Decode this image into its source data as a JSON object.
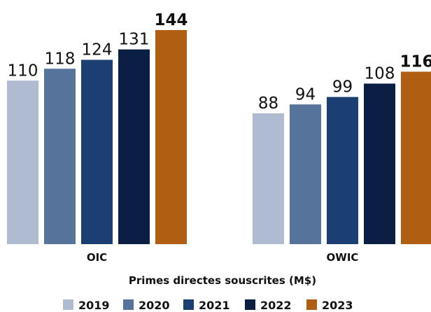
{
  "chart_data": {
    "type": "bar",
    "categories": [
      "OIC",
      "OWIC"
    ],
    "series": [
      {
        "name": "2019",
        "color": "#aebbd0",
        "values": [
          110,
          88
        ]
      },
      {
        "name": "2020",
        "color": "#56749b",
        "values": [
          118,
          94
        ]
      },
      {
        "name": "2021",
        "color": "#1b3f73",
        "values": [
          124,
          99
        ]
      },
      {
        "name": "2022",
        "color": "#0b1f45",
        "values": [
          131,
          108
        ]
      },
      {
        "name": "2023",
        "color": "#b05f12",
        "values": [
          144,
          116
        ]
      }
    ],
    "highlight_series": "2023",
    "xlabel": "Primes directes souscrites (M$)",
    "ylim": [
      0,
      144
    ],
    "grid": false,
    "legend": "bottom"
  }
}
